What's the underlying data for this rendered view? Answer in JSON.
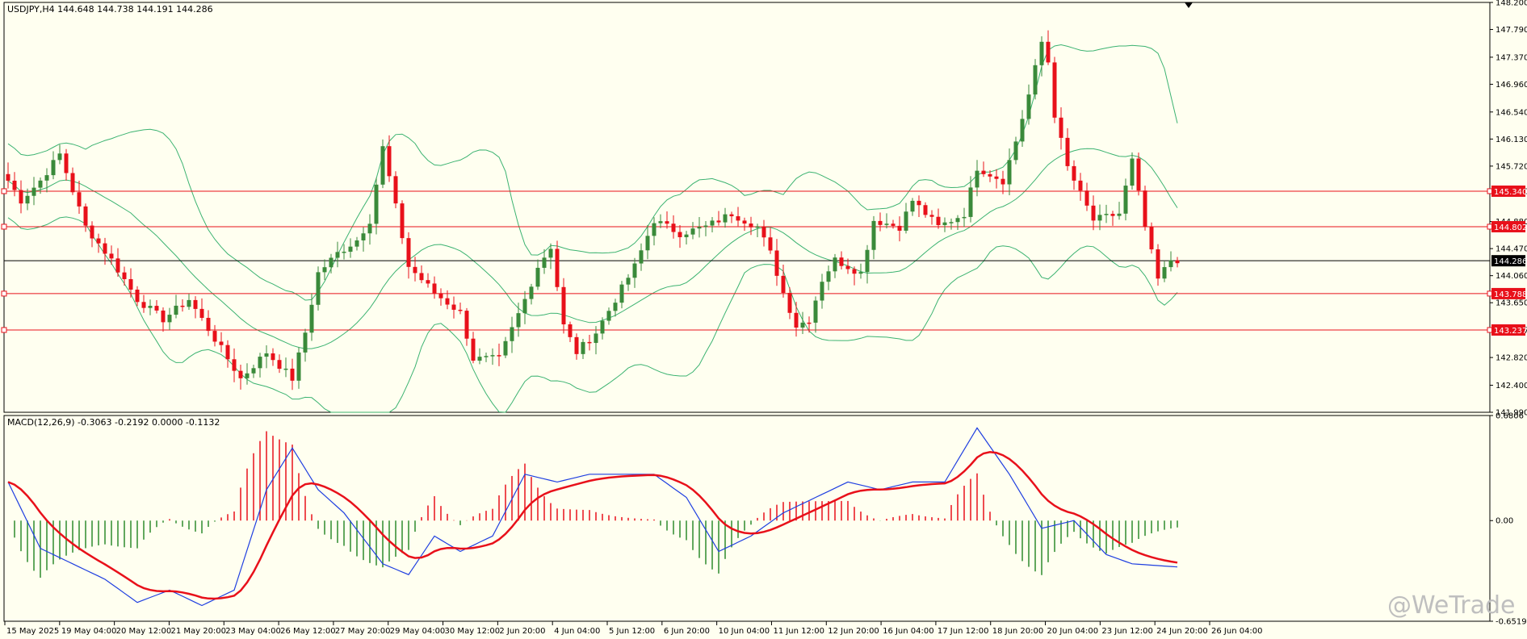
{
  "colors": {
    "background": "#fffff0",
    "bull": "#3a8a3a",
    "bear": "#e8101a",
    "band": "#3cb371",
    "level_line": "#e8101a",
    "current_line": "#000000",
    "macd_line": "#1f3fe0",
    "signal_line": "#e8101a",
    "hist_pos": "#e8101a",
    "hist_neg": "#2e8b2e"
  },
  "header": {
    "info": "USDJPY,H4  144.648 144.738 144.191 144.286"
  },
  "price_axis": {
    "min": 141.99,
    "max": 148.2,
    "ticks": [
      "148.200",
      "147.790",
      "147.370",
      "146.960",
      "146.540",
      "146.130",
      "145.720",
      "145.340",
      "144.880",
      "144.470",
      "144.060",
      "143.650",
      "143.237",
      "142.820",
      "142.400",
      "141.990"
    ]
  },
  "levels": [
    {
      "label": "145.340",
      "value": 145.34
    },
    {
      "label": "144.802",
      "value": 144.802
    },
    {
      "label": "143.788",
      "value": 143.788
    },
    {
      "label": "143.237",
      "value": 143.237
    }
  ],
  "current_price": {
    "label": "144.286",
    "value": 144.286
  },
  "macd": {
    "title": "MACD(12,26,9) -0.3063 -0.2192 0.0000 -0.1132",
    "min": -0.6519,
    "max": 0.6806,
    "ticks": [
      "0.6806",
      "0.00",
      "-0.6519"
    ]
  },
  "time_axis": [
    "15 May 2025",
    "19 May 04:00",
    "20 May 12:00",
    "21 May 20:00",
    "23 May 04:00",
    "26 May 12:00",
    "27 May 20:00",
    "29 May 04:00",
    "30 May 12:00",
    "2 Jun 20:00",
    "4 Jun 04:00",
    "5 Jun 12:00",
    "6 Jun 20:00",
    "10 Jun 04:00",
    "11 Jun 12:00",
    "12 Jun 20:00",
    "16 Jun 04:00",
    "17 Jun 12:00",
    "18 Jun 20:00",
    "20 Jun 04:00",
    "23 Jun 12:00",
    "24 Jun 20:00",
    "26 Jun 04:00"
  ],
  "watermark": "@WeTrade",
  "chart_data": {
    "type": "candlestick",
    "symbol": "USDJPY",
    "timeframe": "H4",
    "indicators": [
      "Bollinger Bands",
      "MACD(12,26,9)"
    ],
    "close_anchors": [
      [
        0,
        145.5
      ],
      [
        2,
        145.2
      ],
      [
        5,
        145.5
      ],
      [
        8,
        145.9
      ],
      [
        12,
        144.8
      ],
      [
        16,
        144.3
      ],
      [
        20,
        143.7
      ],
      [
        24,
        143.4
      ],
      [
        28,
        143.7
      ],
      [
        32,
        143.1
      ],
      [
        36,
        142.5
      ],
      [
        40,
        142.9
      ],
      [
        44,
        142.5
      ],
      [
        46,
        143.2
      ],
      [
        48,
        144.1
      ],
      [
        51,
        144.4
      ],
      [
        54,
        144.6
      ],
      [
        56,
        144.9
      ],
      [
        58,
        146.0
      ],
      [
        60,
        145.1
      ],
      [
        62,
        144.2
      ],
      [
        66,
        143.8
      ],
      [
        70,
        143.5
      ],
      [
        72,
        142.8
      ],
      [
        76,
        142.8
      ],
      [
        80,
        143.7
      ],
      [
        82,
        144.2
      ],
      [
        84,
        144.5
      ],
      [
        86,
        143.3
      ],
      [
        88,
        142.9
      ],
      [
        91,
        143.2
      ],
      [
        94,
        143.7
      ],
      [
        97,
        144.2
      ],
      [
        100,
        144.9
      ],
      [
        104,
        144.7
      ],
      [
        108,
        144.8
      ],
      [
        112,
        145.0
      ],
      [
        116,
        144.8
      ],
      [
        118,
        144.4
      ],
      [
        120,
        143.8
      ],
      [
        122,
        143.3
      ],
      [
        124,
        143.4
      ],
      [
        126,
        144.0
      ],
      [
        128,
        144.3
      ],
      [
        132,
        144.1
      ],
      [
        134,
        144.9
      ],
      [
        138,
        144.8
      ],
      [
        140,
        145.2
      ],
      [
        144,
        144.8
      ],
      [
        148,
        145.0
      ],
      [
        150,
        145.7
      ],
      [
        154,
        145.5
      ],
      [
        156,
        146.1
      ],
      [
        158,
        146.8
      ],
      [
        160,
        147.6
      ],
      [
        161,
        147.3
      ],
      [
        162,
        146.5
      ],
      [
        164,
        145.7
      ],
      [
        168,
        144.9
      ],
      [
        172,
        145.0
      ],
      [
        174,
        145.8
      ],
      [
        176,
        144.8
      ],
      [
        178,
        144.0
      ],
      [
        180,
        144.3
      ],
      [
        181,
        144.3
      ]
    ],
    "macd_anchors": [
      [
        0,
        0.25
      ],
      [
        5,
        -0.18
      ],
      [
        10,
        -0.28
      ],
      [
        15,
        -0.38
      ],
      [
        20,
        -0.53
      ],
      [
        25,
        -0.45
      ],
      [
        30,
        -0.55
      ],
      [
        35,
        -0.45
      ],
      [
        40,
        0.2
      ],
      [
        44,
        0.47
      ],
      [
        48,
        0.2
      ],
      [
        52,
        0.05
      ],
      [
        58,
        -0.28
      ],
      [
        62,
        -0.35
      ],
      [
        66,
        -0.1
      ],
      [
        70,
        -0.2
      ],
      [
        75,
        -0.1
      ],
      [
        80,
        0.3
      ],
      [
        85,
        0.25
      ],
      [
        90,
        0.3
      ],
      [
        100,
        0.3
      ],
      [
        105,
        0.15
      ],
      [
        110,
        -0.2
      ],
      [
        115,
        -0.1
      ],
      [
        120,
        0.05
      ],
      [
        125,
        0.15
      ],
      [
        130,
        0.25
      ],
      [
        135,
        0.2
      ],
      [
        140,
        0.25
      ],
      [
        145,
        0.25
      ],
      [
        150,
        0.6
      ],
      [
        155,
        0.3
      ],
      [
        160,
        -0.05
      ],
      [
        165,
        0.0
      ],
      [
        170,
        -0.22
      ],
      [
        174,
        -0.28
      ],
      [
        181,
        -0.3
      ]
    ]
  }
}
